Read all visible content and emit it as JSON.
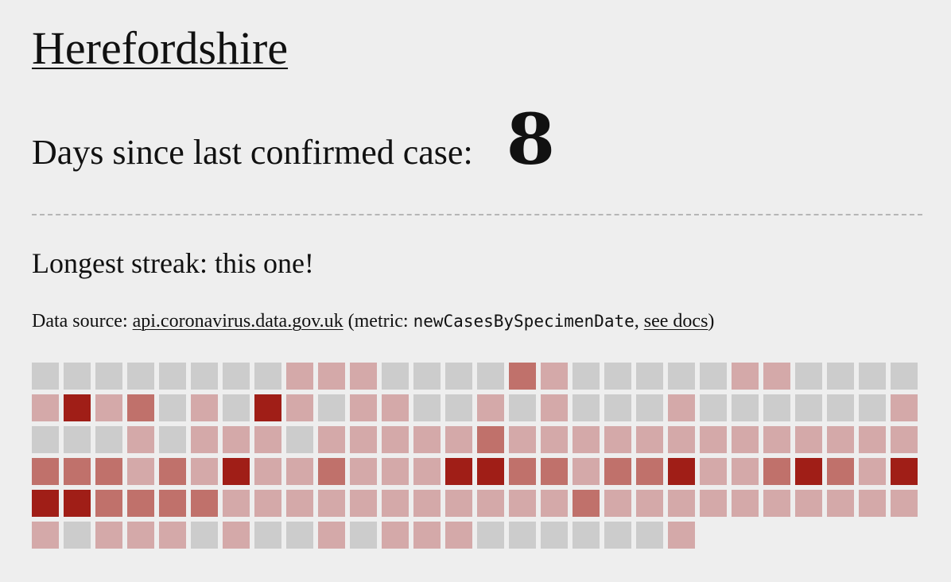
{
  "title": "Herefordshire",
  "days_label": "Days since last confirmed case:",
  "days_count": "8",
  "streak_text": "Longest streak: this one!",
  "source": {
    "prefix": "Data source:",
    "link_text": "api.coronavirus.data.gov.uk",
    "metric_prefix": "(metric:",
    "metric_name": "newCasesBySpecimenDate",
    "comma": ",",
    "docs_link": "see docs",
    "suffix": ")"
  },
  "colors": {
    "level_0": "#cccccc",
    "level_1": "#d4a9a9",
    "level_2": "#c0716b",
    "level_3": "#a01e17"
  },
  "calendar_levels": [
    [
      0,
      0,
      0,
      0,
      0,
      0,
      0,
      0,
      1,
      1,
      1,
      0,
      0,
      0,
      0,
      2,
      1,
      0,
      0,
      0,
      0,
      0,
      1,
      1,
      0,
      0,
      0,
      0
    ],
    [
      1,
      3,
      1,
      2,
      0,
      1,
      0,
      3,
      1,
      0,
      1,
      1,
      0,
      0,
      1,
      0,
      1,
      0,
      0,
      0,
      1,
      0,
      0,
      0,
      0,
      0,
      0,
      1
    ],
    [
      0,
      0,
      0,
      1,
      0,
      1,
      1,
      1,
      0,
      1,
      1,
      1,
      1,
      1,
      2,
      1,
      1,
      1,
      1,
      1,
      1,
      1,
      1,
      1,
      1,
      1,
      1,
      1
    ],
    [
      2,
      2,
      2,
      1,
      2,
      1,
      3,
      1,
      1,
      2,
      1,
      1,
      1,
      3,
      3,
      2,
      2,
      1,
      2,
      2,
      3,
      1,
      1,
      2,
      3,
      2,
      1,
      3
    ],
    [
      3,
      3,
      2,
      2,
      2,
      2,
      1,
      1,
      1,
      1,
      1,
      1,
      1,
      1,
      1,
      1,
      1,
      2,
      1,
      1,
      1,
      1,
      1,
      1,
      1,
      1,
      1,
      1
    ],
    [
      1,
      0,
      1,
      1,
      1,
      0,
      1,
      0,
      0,
      1,
      0,
      1,
      1,
      1,
      0,
      0,
      0,
      0,
      0,
      0,
      1
    ]
  ]
}
